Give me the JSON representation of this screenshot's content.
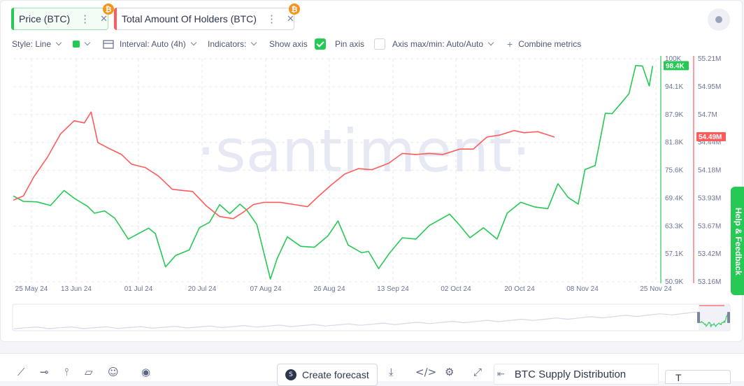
{
  "tabs": [
    {
      "label": "Price (BTC)",
      "color": "#26c953",
      "coin": "₿",
      "icon_menu": "dots-vertical-icon",
      "icon_close": "close-icon"
    },
    {
      "label": "Total Amount Of Holders (BTC)",
      "color": "#ff5b5b",
      "coin": "₿",
      "icon_menu": "dots-vertical-icon",
      "icon_close": "close-icon"
    }
  ],
  "toolbar": {
    "style": "Style: Line",
    "interval": "Interval: Auto (4h)",
    "indicators": "Indicators:",
    "show_axis": "Show axis",
    "pin_axis": "Pin axis",
    "axis_maxmin": "Axis max/min: Auto/Auto",
    "combine": "Combine metrics"
  },
  "watermark": "·santiment·",
  "chart_data": {
    "type": "line",
    "x_ticks": [
      "25 May 24",
      "13 Jun 24",
      "01 Jul 24",
      "20 Jul 24",
      "07 Aug 24",
      "26 Aug 24",
      "13 Sep 24",
      "02 Oct 24",
      "20 Oct 24",
      "08 Nov 24",
      "25 Nov 24"
    ],
    "x_range": [
      "2024-05-21",
      "2024-11-28"
    ],
    "series": [
      {
        "name": "Price (BTC)",
        "color": "#26c953",
        "axis": "left",
        "ylim": [
          50900,
          100000
        ],
        "y_ticks": [
          "100K",
          "94.1K",
          "87.9K",
          "81.8K",
          "75.6K",
          "69.4K",
          "63.3K",
          "57.1K",
          "50.9K"
        ],
        "last_value_label": "98.4K",
        "points": [
          [
            "2024-05-21",
            69800
          ],
          [
            "2024-05-24",
            68600
          ],
          [
            "2024-05-28",
            68500
          ],
          [
            "2024-06-01",
            67700
          ],
          [
            "2024-06-05",
            71000
          ],
          [
            "2024-06-08",
            69300
          ],
          [
            "2024-06-12",
            67500
          ],
          [
            "2024-06-14",
            66000
          ],
          [
            "2024-06-17",
            66500
          ],
          [
            "2024-06-20",
            64900
          ],
          [
            "2024-06-24",
            60300
          ],
          [
            "2024-06-27",
            61500
          ],
          [
            "2024-06-30",
            62700
          ],
          [
            "2024-07-02",
            61500
          ],
          [
            "2024-07-05",
            54200
          ],
          [
            "2024-07-08",
            56700
          ],
          [
            "2024-07-12",
            57900
          ],
          [
            "2024-07-15",
            62800
          ],
          [
            "2024-07-18",
            64000
          ],
          [
            "2024-07-21",
            67900
          ],
          [
            "2024-07-24",
            65900
          ],
          [
            "2024-07-27",
            68000
          ],
          [
            "2024-07-29",
            66700
          ],
          [
            "2024-08-01",
            63500
          ],
          [
            "2024-08-05",
            51500
          ],
          [
            "2024-08-07",
            56000
          ],
          [
            "2024-08-10",
            60800
          ],
          [
            "2024-08-14",
            58700
          ],
          [
            "2024-08-18",
            58500
          ],
          [
            "2024-08-22",
            61000
          ],
          [
            "2024-08-25",
            64300
          ],
          [
            "2024-08-28",
            59000
          ],
          [
            "2024-09-01",
            57300
          ],
          [
            "2024-09-03",
            57600
          ],
          [
            "2024-09-06",
            53800
          ],
          [
            "2024-09-09",
            57000
          ],
          [
            "2024-09-13",
            60600
          ],
          [
            "2024-09-17",
            60300
          ],
          [
            "2024-09-21",
            63300
          ],
          [
            "2024-09-27",
            65800
          ],
          [
            "2024-09-30",
            63300
          ],
          [
            "2024-10-03",
            60600
          ],
          [
            "2024-10-07",
            62800
          ],
          [
            "2024-10-11",
            60300
          ],
          [
            "2024-10-14",
            66000
          ],
          [
            "2024-10-18",
            68400
          ],
          [
            "2024-10-22",
            67400
          ],
          [
            "2024-10-26",
            67000
          ],
          [
            "2024-10-29",
            72500
          ],
          [
            "2024-11-01",
            69500
          ],
          [
            "2024-11-04",
            68000
          ],
          [
            "2024-11-06",
            75600
          ],
          [
            "2024-11-09",
            76500
          ],
          [
            "2024-11-12",
            88000
          ],
          [
            "2024-11-14",
            87900
          ],
          [
            "2024-11-17",
            90500
          ],
          [
            "2024-11-19",
            92300
          ],
          [
            "2024-11-21",
            98500
          ],
          [
            "2024-11-23",
            98400
          ],
          [
            "2024-11-25",
            94000
          ],
          [
            "2024-11-26",
            98400
          ]
        ]
      },
      {
        "name": "Total Amount Of Holders (BTC)",
        "color": "#ff5b5b",
        "axis": "right",
        "ylim": [
          53160000,
          55210000
        ],
        "y_ticks": [
          "55.21M",
          "54.95M",
          "54.7M",
          "54.44M",
          "54.18M",
          "53.93M",
          "53.67M",
          "53.42M",
          "53.16M"
        ],
        "last_value_label": "54.49M",
        "points": [
          [
            "2024-05-21",
            53910000
          ],
          [
            "2024-05-24",
            53950000
          ],
          [
            "2024-05-27",
            54120000
          ],
          [
            "2024-05-31",
            54300000
          ],
          [
            "2024-06-04",
            54520000
          ],
          [
            "2024-06-08",
            54640000
          ],
          [
            "2024-06-11",
            54620000
          ],
          [
            "2024-06-13",
            54720000
          ],
          [
            "2024-06-15",
            54440000
          ],
          [
            "2024-06-18",
            54390000
          ],
          [
            "2024-06-22",
            54330000
          ],
          [
            "2024-06-25",
            54240000
          ],
          [
            "2024-06-29",
            54210000
          ],
          [
            "2024-07-03",
            54130000
          ],
          [
            "2024-07-07",
            54010000
          ],
          [
            "2024-07-10",
            54000000
          ],
          [
            "2024-07-13",
            53990000
          ],
          [
            "2024-07-17",
            53860000
          ],
          [
            "2024-07-21",
            53760000
          ],
          [
            "2024-07-25",
            53740000
          ],
          [
            "2024-07-28",
            53800000
          ],
          [
            "2024-07-31",
            53870000
          ],
          [
            "2024-08-03",
            53890000
          ],
          [
            "2024-08-08",
            53890000
          ],
          [
            "2024-08-12",
            53870000
          ],
          [
            "2024-08-16",
            53850000
          ],
          [
            "2024-08-19",
            53940000
          ],
          [
            "2024-08-23",
            54050000
          ],
          [
            "2024-08-27",
            54150000
          ],
          [
            "2024-08-31",
            54200000
          ],
          [
            "2024-09-04",
            54190000
          ],
          [
            "2024-09-09",
            54250000
          ],
          [
            "2024-09-13",
            54340000
          ],
          [
            "2024-09-17",
            54330000
          ],
          [
            "2024-09-21",
            54340000
          ],
          [
            "2024-09-25",
            54330000
          ],
          [
            "2024-09-30",
            54380000
          ],
          [
            "2024-10-04",
            54380000
          ],
          [
            "2024-10-08",
            54490000
          ],
          [
            "2024-10-12",
            54510000
          ],
          [
            "2024-10-16",
            54550000
          ],
          [
            "2024-10-19",
            54530000
          ],
          [
            "2024-10-23",
            54540000
          ],
          [
            "2024-10-26",
            54510000
          ],
          [
            "2024-10-28",
            54490000
          ]
        ]
      }
    ]
  },
  "bottom_toolbar": {
    "create_forecast": "Create forecast",
    "distribution": "BTC Supply Distribution",
    "t_button": "T"
  },
  "help": "Help & Feedback"
}
